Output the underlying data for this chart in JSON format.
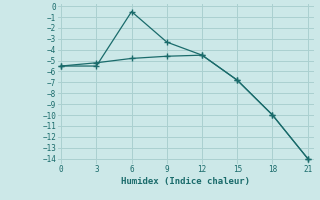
{
  "xlabel": "Humidex (Indice chaleur)",
  "background_color": "#cce8e8",
  "grid_color": "#aad0d0",
  "line_color": "#1a6b6b",
  "line1_x": [
    0,
    3,
    6,
    9,
    12,
    15,
    18,
    21
  ],
  "line1_y": [
    -5.5,
    -5.5,
    -0.5,
    -3.3,
    -4.5,
    -6.8,
    -10.0,
    -14.0
  ],
  "line2_x": [
    0,
    3,
    6,
    9,
    12,
    15,
    18,
    21
  ],
  "line2_y": [
    -5.5,
    -5.2,
    -4.8,
    -4.6,
    -4.5,
    -6.8,
    -10.0,
    -14.0
  ],
  "xlim": [
    -0.3,
    21.5
  ],
  "ylim": [
    -14.5,
    0.2
  ],
  "xticks": [
    0,
    3,
    6,
    9,
    12,
    15,
    18,
    21
  ],
  "yticks": [
    0,
    -1,
    -2,
    -3,
    -4,
    -5,
    -6,
    -7,
    -8,
    -9,
    -10,
    -11,
    -12,
    -13,
    -14
  ],
  "tick_fontsize": 5.5,
  "xlabel_fontsize": 6.5
}
